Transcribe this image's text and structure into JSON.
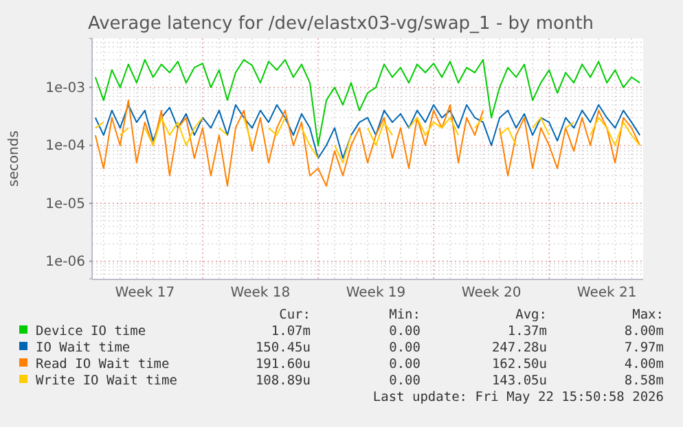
{
  "chart_data": {
    "type": "line",
    "title": "Average latency for /dev/elastx03-vg/swap_1 - by month",
    "ylabel": "seconds",
    "log": true,
    "grid": true,
    "legend": "bottom",
    "categories": [
      null,
      null,
      null,
      null,
      null,
      null,
      "Week 17",
      null,
      null,
      null,
      null,
      null,
      null,
      null,
      null,
      null,
      null,
      null,
      null,
      null,
      "Week 18",
      null,
      null,
      null,
      null,
      null,
      null,
      null,
      null,
      null,
      null,
      null,
      null,
      null,
      "Week 19",
      null,
      null,
      null,
      null,
      null,
      null,
      null,
      null,
      null,
      null,
      null,
      null,
      null,
      "Week 20",
      null,
      null,
      null,
      null,
      null,
      null,
      null,
      null,
      null,
      null,
      null,
      null,
      null,
      "Week 21",
      null,
      null,
      null,
      null
    ],
    "ylim": [
      5e-07,
      0.007
    ],
    "yticks": [
      {
        "value": 1e-06,
        "label": "1e-06"
      },
      {
        "value": 1e-05,
        "label": "1e-05"
      },
      {
        "value": 0.0001,
        "label": "1e-04"
      },
      {
        "value": 0.001,
        "label": "1e-03"
      }
    ],
    "series": [
      {
        "name": "Device IO time",
        "color": "#00cc00",
        "values": [
          0.0015,
          0.0006,
          0.002,
          0.001,
          0.0025,
          0.0012,
          0.003,
          0.0015,
          0.0025,
          0.0018,
          0.0028,
          0.0012,
          0.0022,
          0.0026,
          0.001,
          0.002,
          0.0006,
          0.0018,
          0.003,
          0.0024,
          0.0012,
          0.0028,
          0.002,
          0.003,
          0.0015,
          0.0025,
          0.0012,
          0.0001,
          0.0006,
          0.001,
          0.0005,
          0.0012,
          0.0004,
          0.0008,
          0.001,
          0.0025,
          0.0015,
          0.0022,
          0.0012,
          0.0025,
          0.0018,
          0.0026,
          0.0015,
          0.0028,
          0.0012,
          0.0022,
          0.0018,
          0.003,
          0.0003,
          0.001,
          0.0022,
          0.0015,
          0.0025,
          0.0006,
          0.0012,
          0.002,
          0.0008,
          0.0018,
          0.0012,
          0.0025,
          0.0015,
          0.0028,
          0.0012,
          0.002,
          0.001,
          0.0015,
          0.0012
        ]
      },
      {
        "name": "IO Wait time",
        "color": "#0066b3",
        "values": [
          0.0003,
          0.00015,
          0.0004,
          0.0002,
          0.0005,
          0.00025,
          0.0004,
          0.00012,
          0.0003,
          0.00045,
          0.0002,
          0.00035,
          0.00015,
          0.0003,
          0.0002,
          0.0004,
          0.00015,
          0.0005,
          0.0003,
          0.0002,
          0.0004,
          0.00025,
          0.0005,
          0.0003,
          0.00015,
          0.00035,
          0.0002,
          6e-05,
          0.0001,
          0.0002,
          6e-05,
          0.00015,
          0.00025,
          0.0003,
          0.00015,
          0.0004,
          0.00025,
          0.00035,
          0.0002,
          0.0004,
          0.00025,
          0.0005,
          0.0003,
          0.0004,
          0.0002,
          0.0005,
          0.0003,
          0.00025,
          0.0001,
          0.0003,
          0.0004,
          0.0002,
          0.00035,
          0.00015,
          0.0003,
          0.00025,
          0.00012,
          0.0003,
          0.0002,
          0.0004,
          0.00025,
          0.0005,
          0.0003,
          0.0002,
          0.0004,
          0.00025,
          0.00015
        ]
      },
      {
        "name": "Read IO Wait time",
        "color": "#ff8000",
        "values": [
          0.00015,
          4e-05,
          0.0003,
          0.0001,
          0.0006,
          5e-05,
          0.00025,
          0.0001,
          0.0004,
          3e-05,
          0.0002,
          0.0003,
          6e-05,
          0.0002,
          3e-05,
          0.00015,
          2e-05,
          0.0002,
          0.0004,
          8e-05,
          0.0003,
          5e-05,
          0.0002,
          0.0004,
          0.0001,
          0.00025,
          3e-05,
          4e-05,
          2e-05,
          8e-05,
          3e-05,
          0.0001,
          0.0002,
          5e-05,
          0.00015,
          0.0003,
          6e-05,
          0.0002,
          4e-05,
          0.0003,
          0.0001,
          0.0004,
          0.0002,
          0.0005,
          5e-05,
          0.0003,
          0.00015,
          0.0004,
          null,
          0.0002,
          3e-05,
          0.00015,
          0.0003,
          4e-05,
          0.0002,
          0.0001,
          4e-05,
          0.0002,
          8e-05,
          0.0003,
          0.0001,
          0.0004,
          0.0002,
          5e-05,
          0.0003,
          0.0002,
          0.0001
        ]
      },
      {
        "name": "Write IO Wait time",
        "color": "#ffcc00",
        "values": [
          0.0002,
          0.00025,
          null,
          0.00015,
          0.0002,
          null,
          0.0002,
          0.0001,
          0.0003,
          0.00015,
          0.00025,
          0.0001,
          0.0002,
          0.0003,
          null,
          0.0002,
          0.00015,
          null,
          0.0003,
          0.0001,
          null,
          0.0002,
          0.00015,
          0.0003,
          null,
          0.0002,
          0.0001,
          6e-05,
          null,
          0.0001,
          5e-05,
          0.00015,
          null,
          0.0002,
          0.0001,
          0.00025,
          0.00015,
          null,
          0.0002,
          0.0003,
          0.00015,
          0.00025,
          0.0002,
          0.0003,
          0.00015,
          null,
          0.0002,
          0.0003,
          null,
          0.00015,
          0.0002,
          0.0001,
          null,
          0.0002,
          0.0003,
          0.00015,
          null,
          0.0002,
          0.00025,
          null,
          0.00015,
          0.0003,
          0.0002,
          0.0001,
          0.00025,
          0.00015,
          0.0001
        ]
      }
    ],
    "annotations": [
      "Cur:",
      "Min:",
      "Avg:",
      "Max:",
      "1.07m",
      "0.00",
      "1.37m",
      "8.00m",
      "150.45u",
      "0.00",
      "247.28u",
      "7.97m",
      "191.60u",
      "0.00",
      "162.50u",
      "4.00m",
      "108.89u",
      "0.00",
      "143.05u",
      "8.58m",
      "Last update: Fri May 22 15:50:58 2026"
    ]
  }
}
